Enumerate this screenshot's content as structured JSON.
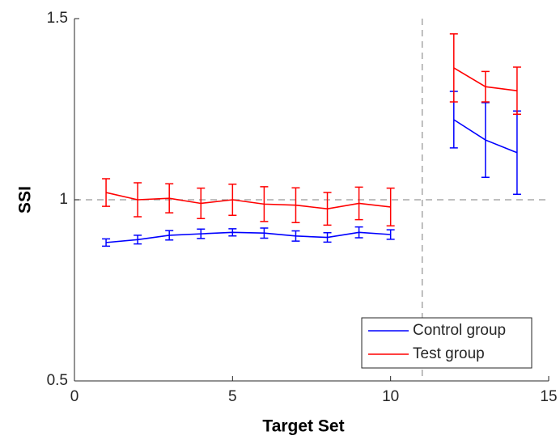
{
  "chart_data": {
    "type": "line",
    "xlabel": "Target Set",
    "ylabel": "SSI",
    "x": [
      1,
      2,
      3,
      4,
      5,
      6,
      7,
      8,
      9,
      10,
      11,
      12,
      13,
      14
    ],
    "series": [
      {
        "name": "Control group",
        "color": "#0000ff",
        "values": [
          0.882,
          0.89,
          0.902,
          0.906,
          0.91,
          0.908,
          0.9,
          0.896,
          0.91,
          0.904,
          null,
          1.221,
          1.165,
          1.13
        ],
        "errors": [
          0.01,
          0.012,
          0.013,
          0.013,
          0.01,
          0.014,
          0.014,
          0.013,
          0.015,
          0.013,
          null,
          0.078,
          0.103,
          0.115
        ]
      },
      {
        "name": "Test group",
        "color": "#ff0000",
        "values": [
          1.02,
          1.0,
          1.004,
          0.99,
          1.0,
          0.988,
          0.985,
          0.975,
          0.99,
          0.98,
          null,
          1.364,
          1.312,
          1.301
        ],
        "errors": [
          0.038,
          0.047,
          0.04,
          0.042,
          0.043,
          0.048,
          0.048,
          0.045,
          0.045,
          0.052,
          null,
          0.094,
          0.042,
          0.065
        ]
      }
    ],
    "xlim": [
      0,
      15
    ],
    "xticks": [
      0,
      5,
      10,
      15
    ],
    "ylim": [
      0.5,
      1.5
    ],
    "yticks": [
      0.5,
      1,
      1.5
    ],
    "vline": 11,
    "hline": 1,
    "legend": "lower right"
  }
}
